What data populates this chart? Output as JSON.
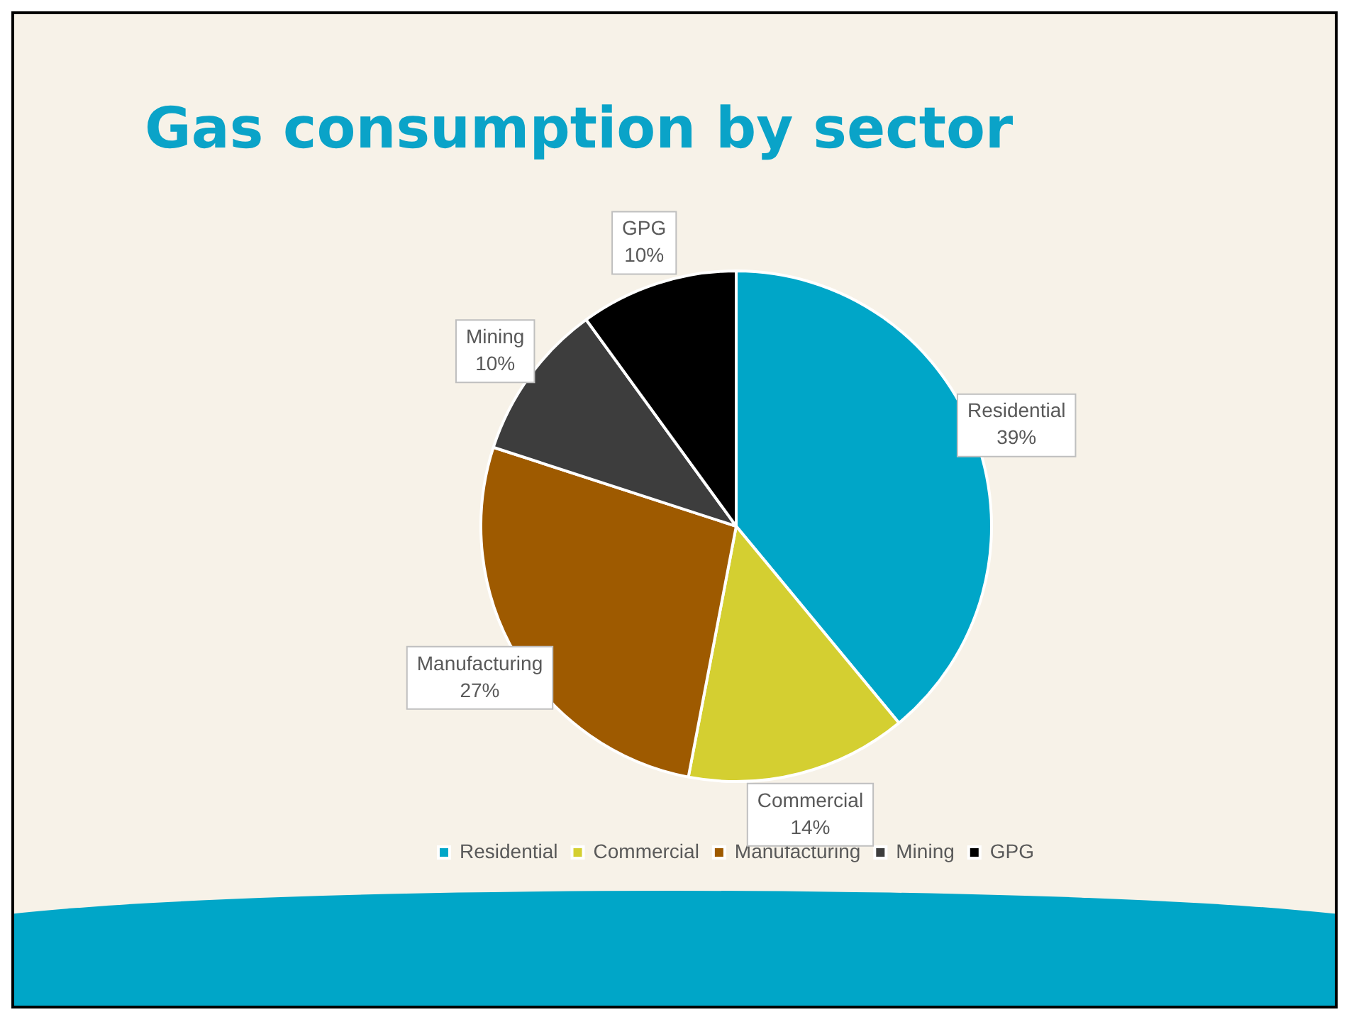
{
  "chart_data": {
    "type": "pie",
    "title": "Gas consumption by sector",
    "categories": [
      "Residential",
      "Commercial",
      "Manufacturing",
      "Mining",
      "GPG"
    ],
    "values": [
      39,
      14,
      27,
      10,
      10
    ],
    "value_labels": [
      "39%",
      "14%",
      "27%",
      "10%",
      "10%"
    ],
    "colors": [
      "#00a6c8",
      "#d4cf31",
      "#9e5a00",
      "#3d3d3d",
      "#000000"
    ],
    "legend": "bottom"
  }
}
